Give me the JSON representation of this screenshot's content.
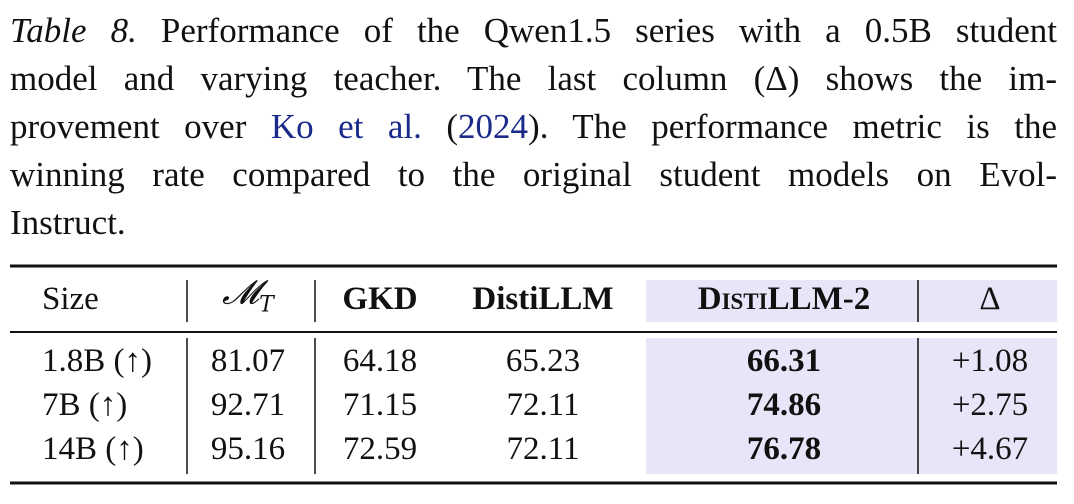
{
  "caption": {
    "label": "Table 8.",
    "line1": "Performance of the Qwen1.5 series with a 0.5B student",
    "line2": "model and varying teacher. The last column (Δ) shows the im-",
    "line3_before": "provement over",
    "citation_author": "Ko et al.",
    "line3_open": "(",
    "citation_year": "2024",
    "line3_after": "). The performance metric is the",
    "line4": "winning rate compared to the original student models on Evol-",
    "line5": "Instruct."
  },
  "table": {
    "header": [
      "Size",
      {
        "base": "𝓜",
        "sub": "T"
      },
      "GKD",
      "DistiLLM",
      "DistiLLM-2",
      "Δ"
    ],
    "rows": [
      [
        "1.8B (↑)",
        "81.07",
        "64.18",
        "65.23",
        "66.31",
        "+1.08"
      ],
      [
        "7B (↑)",
        "92.71",
        "71.15",
        "72.11",
        "74.86",
        "+2.75"
      ],
      [
        "14B (↑)",
        "95.16",
        "72.59",
        "72.11",
        "76.78",
        "+4.67"
      ]
    ]
  }
}
